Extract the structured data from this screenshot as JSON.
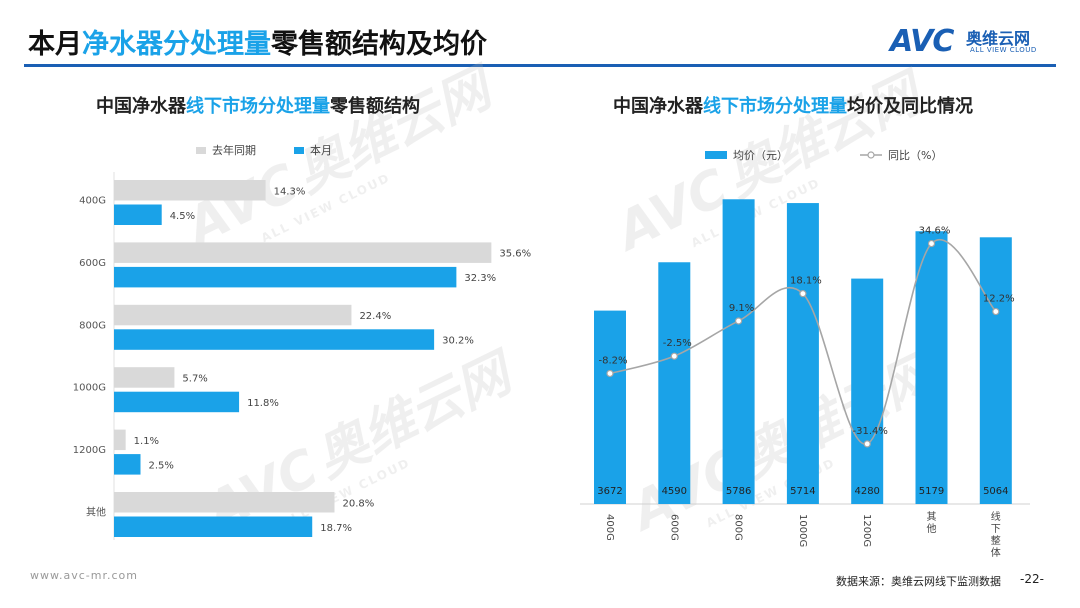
{
  "page": {
    "title_pre": "本月",
    "title_hl": "净水器分处理量",
    "title_post": "零售额结构及均价",
    "logo_text": "AVC",
    "logo_cn": "奥维云网",
    "logo_en": "ALL VIEW CLOUD",
    "watermark_en": "ALL VIEW CLOUD",
    "footer_url": "www.avc-mr.com",
    "source": "数据来源：奥维云网线下监测数据",
    "page_number": "-22-",
    "colors": {
      "accent": "#1aa2e8",
      "gray": "#d9d9d9",
      "brand": "#1a5fb4",
      "line": "#a6a6a6"
    }
  },
  "chart_data": [
    {
      "type": "bar",
      "orientation": "horizontal",
      "title_pre": "中国净水器",
      "title_hl": "线下市场分处理量",
      "title_post": "零售额结构",
      "categories": [
        "400G",
        "600G",
        "800G",
        "1000G",
        "1200G",
        "其他"
      ],
      "series": [
        {
          "name": "去年同期",
          "values": [
            14.3,
            35.6,
            22.4,
            5.7,
            1.1,
            20.8
          ],
          "labels": [
            "14.3%",
            "35.6%",
            "22.4%",
            "5.7%",
            "1.1%",
            "20.8%"
          ],
          "color": "#d9d9d9"
        },
        {
          "name": "本月",
          "values": [
            4.5,
            32.3,
            30.2,
            11.8,
            2.5,
            18.7
          ],
          "labels": [
            "4.5%",
            "32.3%",
            "30.2%",
            "11.8%",
            "2.5%",
            "18.7%"
          ],
          "color": "#1aa2e8"
        }
      ],
      "xlim": [
        0,
        40
      ],
      "legend": "top-left"
    },
    {
      "type": "bar",
      "title_pre": "中国净水器",
      "title_hl": "线下市场分处理量",
      "title_post": "均价及同比情况",
      "categories": [
        "400G",
        "600G",
        "800G",
        "1000G",
        "1200G",
        "其他",
        "线下整体"
      ],
      "series": [
        {
          "name": "均价（元）",
          "type": "bar",
          "values": [
            3672,
            4590,
            5786,
            5714,
            4280,
            5179,
            5064
          ],
          "labels": [
            "3672",
            "4590",
            "5786",
            "5714",
            "4280",
            "5179",
            "5064"
          ],
          "color": "#1aa2e8"
        },
        {
          "name": "同比（%）",
          "type": "line",
          "values": [
            -8.2,
            -2.5,
            9.1,
            18.1,
            -31.4,
            34.6,
            12.2
          ],
          "labels": [
            "-8.2%",
            "-2.5%",
            "9.1%",
            "18.1%",
            "-31.4%",
            "34.6%",
            "12.2%"
          ],
          "color": "#a6a6a6"
        }
      ],
      "ylim": [
        0,
        6000
      ],
      "y2lim": [
        -40,
        45
      ],
      "legend": "top"
    }
  ]
}
